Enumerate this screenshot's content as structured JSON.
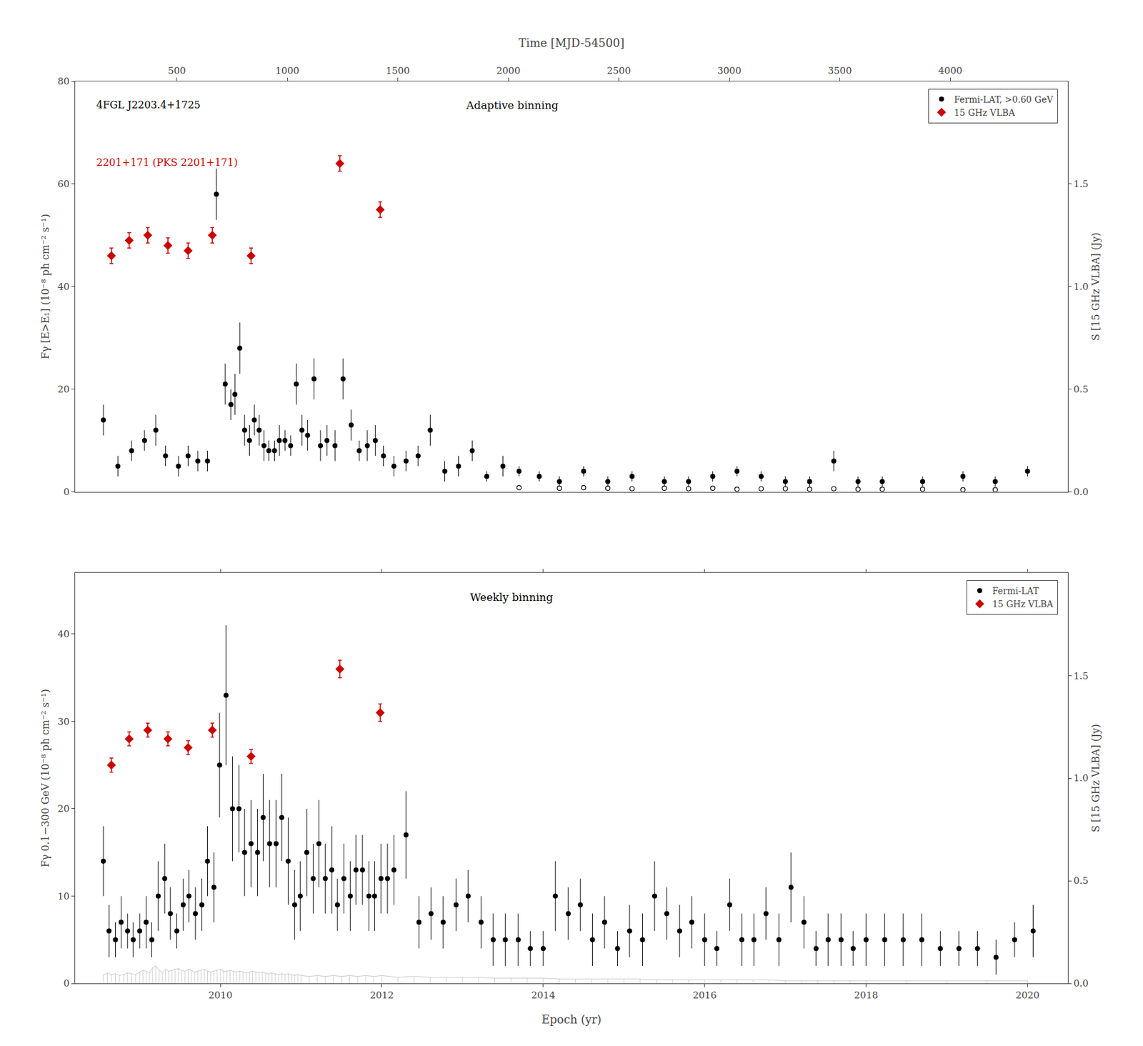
{
  "chart_data": [
    {
      "type": "scatter",
      "x2label": "Time [MJD-54500]",
      "ylabel": "Fγ [E>E₁] (10⁻⁸ ph cm⁻² s⁻¹)",
      "y2label": "S [15 GHz VLBA] (Jy)",
      "xlim": [
        2008.2,
        2020.5
      ],
      "x2ticks": [
        {
          "value": 2009.460643,
          "label": "500"
        },
        {
          "value": 2010.829569,
          "label": "1000"
        },
        {
          "value": 2012.198494,
          "label": "1500"
        },
        {
          "value": 2013.567419,
          "label": "2000"
        },
        {
          "value": 2014.936345,
          "label": "2500"
        },
        {
          "value": 2016.30527,
          "label": "3000"
        },
        {
          "value": 2017.674196,
          "label": "3500"
        },
        {
          "value": 2019.043121,
          "label": "4000"
        }
      ],
      "ylim": [
        0,
        80
      ],
      "yticks": [
        0,
        20,
        40,
        60,
        80
      ],
      "y2lim": [
        0,
        2.0
      ],
      "y2ticks": [
        {
          "value": 0,
          "label": "0.0"
        },
        0.5,
        {
          "value": 1.0,
          "label": "1.0"
        },
        1.5
      ],
      "grid": false,
      "legend": "upper right",
      "annotations": [
        {
          "text": "4FGL J2203.4+1725",
          "color": "#000000"
        },
        {
          "text": "2201+171 (PKS 2201+171)",
          "color": "#cc0000"
        },
        {
          "text": "Adaptive binning",
          "color": "#000000"
        }
      ],
      "series": [
        {
          "name": "Fermi-LAT, >0.60 GeV",
          "type": "scatter",
          "marker": "circle",
          "color": "#000000",
          "x": [
            2008.55,
            2008.73,
            2008.9,
            2009.06,
            2009.2,
            2009.32,
            2009.48,
            2009.6,
            2009.72,
            2009.84,
            2009.95,
            2010.06,
            2010.13,
            2010.18,
            2010.24,
            2010.3,
            2010.36,
            2010.42,
            2010.48,
            2010.54,
            2010.6,
            2010.67,
            2010.73,
            2010.8,
            2010.87,
            2010.94,
            2011.01,
            2011.08,
            2011.16,
            2011.24,
            2011.32,
            2011.42,
            2011.52,
            2011.62,
            2011.72,
            2011.82,
            2011.92,
            2012.02,
            2012.15,
            2012.3,
            2012.45,
            2012.6,
            2012.78,
            2012.95,
            2013.12,
            2013.3,
            2013.5,
            2013.7,
            2013.95,
            2014.2,
            2014.5,
            2014.8,
            2015.1,
            2015.5,
            2015.8,
            2016.1,
            2016.4,
            2016.7,
            2017.0,
            2017.3,
            2017.6,
            2017.9,
            2018.2,
            2018.7,
            2019.2,
            2019.6,
            2020.0
          ],
          "values": [
            14,
            5,
            8,
            10,
            12,
            7,
            5,
            7,
            6,
            6,
            58,
            21,
            17,
            19,
            28,
            12,
            10,
            14,
            12,
            9,
            8,
            8,
            10,
            10,
            9,
            21,
            12,
            11,
            22,
            9,
            10,
            9,
            22,
            13,
            8,
            9,
            10,
            7,
            5,
            6,
            7,
            12,
            4,
            5,
            8,
            3,
            5,
            4,
            3,
            2,
            4,
            2,
            3,
            2,
            2,
            3,
            4,
            3,
            2,
            2,
            6,
            2,
            2,
            2,
            3,
            2,
            4
          ],
          "yerr": [
            3,
            2,
            2,
            2,
            3,
            2,
            2,
            2,
            2,
            2,
            5,
            4,
            3,
            4,
            5,
            3,
            3,
            3,
            3,
            3,
            2,
            2,
            3,
            2,
            2,
            4,
            3,
            3,
            4,
            3,
            3,
            3,
            4,
            3,
            2,
            3,
            3,
            2,
            2,
            2,
            2,
            3,
            2,
            2,
            2,
            1,
            2,
            1,
            1,
            1,
            1,
            1,
            1,
            1,
            1,
            1,
            1,
            1,
            1,
            1,
            2,
            1,
            1,
            1,
            1,
            1,
            1
          ]
        },
        {
          "type": "scatter",
          "marker": "circle-open",
          "color": "#000000",
          "x": [
            2013.7,
            2014.2,
            2014.5,
            2014.8,
            2015.1,
            2015.5,
            2015.8,
            2016.1,
            2016.4,
            2016.7,
            2017.0,
            2017.3,
            2017.6,
            2017.9,
            2018.2,
            2018.7,
            2019.2,
            2019.6
          ],
          "values": [
            0.8,
            0.7,
            0.8,
            0.7,
            0.6,
            0.7,
            0.6,
            0.7,
            0.5,
            0.6,
            0.6,
            0.5,
            0.6,
            0.5,
            0.5,
            0.5,
            0.4,
            0.4
          ]
        },
        {
          "name": "15 GHz VLBA",
          "type": "scatter",
          "marker": "diamond",
          "color": "#cc0000",
          "x": [
            2008.65,
            2008.87,
            2009.1,
            2009.35,
            2009.6,
            2009.9,
            2010.38,
            2011.48,
            2011.98
          ],
          "values": [
            46,
            49,
            50,
            48,
            47,
            50,
            46,
            64,
            55
          ],
          "yerr": [
            1.5,
            1.5,
            1.5,
            1.5,
            1.5,
            1.5,
            1.5,
            1.5,
            1.5
          ]
        }
      ]
    },
    {
      "type": "scatter",
      "xlabel": "Epoch (yr)",
      "ylabel": "Fγ 0.1−300 GeV (10⁻⁸ ph cm⁻² s⁻¹)",
      "y2label": "S [15 GHz VLBA] (Jy)",
      "xlim": [
        2008.2,
        2020.5
      ],
      "xticks": [
        2010,
        2012,
        2014,
        2016,
        2018,
        2020
      ],
      "ylim": [
        0,
        47
      ],
      "yticks": [
        0,
        10,
        20,
        30,
        40
      ],
      "y2lim": [
        0,
        2.0
      ],
      "y2ticks": [
        {
          "value": 0,
          "label": "0.0"
        },
        0.5,
        {
          "value": 1.0,
          "label": "1.0"
        },
        1.5
      ],
      "grid": false,
      "legend": "upper right",
      "annotations": [
        {
          "text": "Weekly binning",
          "color": "#000000"
        }
      ],
      "series": [
        {
          "type": "stem",
          "color": "#aaaaaa",
          "x": [
            2008.55,
            2008.6,
            2008.65,
            2008.7,
            2008.75,
            2008.8,
            2008.85,
            2008.9,
            2008.95,
            2009.0,
            2009.04,
            2009.08,
            2009.12,
            2009.16,
            2009.2,
            2009.24,
            2009.28,
            2009.32,
            2009.36,
            2009.4,
            2009.44,
            2009.48,
            2009.52,
            2009.56,
            2009.6,
            2009.64,
            2009.68,
            2009.72,
            2009.76,
            2009.8,
            2009.84,
            2009.88,
            2009.92,
            2009.96,
            2010.0,
            2010.04,
            2010.08,
            2010.12,
            2010.16,
            2010.2,
            2010.24,
            2010.28,
            2010.32,
            2010.36,
            2010.4,
            2010.44,
            2010.48,
            2010.52,
            2010.56,
            2010.6,
            2010.64,
            2010.68,
            2010.72,
            2010.76,
            2010.8,
            2010.84,
            2010.88,
            2010.92,
            2010.96,
            2011.0,
            2011.1,
            2011.2,
            2011.3,
            2011.4,
            2011.5,
            2011.6,
            2011.7,
            2011.8,
            2011.9,
            2012.0,
            2012.2,
            2012.4,
            2012.6,
            2012.8,
            2013.0,
            2013.2,
            2013.4,
            2013.6,
            2013.8,
            2014.0,
            2014.2,
            2014.4,
            2014.6,
            2014.8,
            2015.0,
            2015.2,
            2015.4,
            2015.6,
            2015.8,
            2016.0,
            2016.2,
            2016.4,
            2016.6,
            2016.8,
            2017.0,
            2017.2,
            2017.4,
            2017.6,
            2017.8,
            2018.0,
            2018.5,
            2019.0,
            2019.5,
            2020.0
          ],
          "values": [
            1.0,
            1.2,
            1.0,
            1.1,
            0.9,
            1.0,
            1.2,
            1.1,
            1.0,
            1.3,
            1.5,
            1.4,
            1.2,
            1.8,
            2.0,
            1.5,
            1.3,
            1.6,
            1.4,
            1.5,
            1.6,
            1.7,
            1.5,
            1.4,
            1.6,
            1.5,
            1.3,
            1.4,
            1.5,
            1.6,
            1.4,
            1.3,
            1.4,
            1.5,
            1.6,
            1.4,
            1.4,
            1.5,
            1.4,
            1.3,
            1.4,
            1.3,
            1.2,
            1.3,
            1.4,
            1.3,
            1.2,
            1.3,
            1.2,
            1.1,
            1.2,
            1.1,
            1.0,
            1.1,
            1.0,
            1.1,
            1.0,
            0.9,
            1.0,
            0.9,
            0.8,
            0.9,
            0.8,
            0.9,
            0.8,
            0.9,
            0.8,
            0.9,
            0.8,
            0.9,
            0.7,
            0.8,
            0.7,
            0.7,
            0.7,
            0.7,
            0.6,
            0.6,
            0.6,
            0.6,
            0.5,
            0.5,
            0.5,
            0.5,
            0.5,
            0.5,
            0.4,
            0.4,
            0.4,
            0.4,
            0.4,
            0.4,
            0.4,
            0.4,
            0.3,
            0.3,
            0.3,
            0.3,
            0.3,
            0.3,
            0.3,
            0.3,
            0.3,
            0.3
          ]
        },
        {
          "name": "Fermi-LAT",
          "type": "scatter",
          "marker": "circle",
          "color": "#000000",
          "x": [
            2008.55,
            2008.62,
            2008.7,
            2008.77,
            2008.85,
            2008.92,
            2009.0,
            2009.08,
            2009.15,
            2009.23,
            2009.31,
            2009.38,
            2009.46,
            2009.54,
            2009.61,
            2009.69,
            2009.77,
            2009.84,
            2009.92,
            2009.99,
            2010.07,
            2010.15,
            2010.23,
            2010.3,
            2010.38,
            2010.46,
            2010.53,
            2010.61,
            2010.69,
            2010.76,
            2010.84,
            2010.92,
            2010.99,
            2011.07,
            2011.15,
            2011.22,
            2011.3,
            2011.38,
            2011.45,
            2011.53,
            2011.61,
            2011.68,
            2011.76,
            2011.84,
            2011.91,
            2011.99,
            2012.07,
            2012.15,
            2012.3,
            2012.46,
            2012.61,
            2012.76,
            2012.92,
            2013.07,
            2013.23,
            2013.38,
            2013.53,
            2013.69,
            2013.84,
            2014.0,
            2014.15,
            2014.31,
            2014.46,
            2014.61,
            2014.76,
            2014.92,
            2015.07,
            2015.23,
            2015.38,
            2015.53,
            2015.69,
            2015.84,
            2016.0,
            2016.15,
            2016.31,
            2016.46,
            2016.61,
            2016.76,
            2016.92,
            2017.07,
            2017.23,
            2017.38,
            2017.53,
            2017.69,
            2017.84,
            2018.0,
            2018.23,
            2018.46,
            2018.69,
            2018.92,
            2019.15,
            2019.38,
            2019.61,
            2019.84,
            2020.07
          ],
          "values": [
            14,
            6,
            5,
            7,
            6,
            5,
            6,
            7,
            5,
            10,
            12,
            8,
            6,
            9,
            10,
            8,
            9,
            14,
            11,
            25,
            33,
            20,
            20,
            15,
            16,
            15,
            19,
            16,
            16,
            19,
            14,
            9,
            10,
            15,
            12,
            16,
            12,
            13,
            9,
            12,
            10,
            13,
            13,
            10,
            10,
            12,
            12,
            13,
            17,
            7,
            8,
            7,
            9,
            10,
            7,
            5,
            5,
            5,
            4,
            4,
            10,
            8,
            9,
            5,
            7,
            4,
            6,
            5,
            10,
            8,
            6,
            7,
            5,
            4,
            9,
            5,
            5,
            8,
            5,
            11,
            7,
            4,
            5,
            5,
            4,
            5,
            5,
            5,
            5,
            4,
            4,
            4,
            3,
            5,
            6
          ],
          "yerr": [
            4,
            3,
            2,
            3,
            2,
            2,
            2,
            3,
            2,
            4,
            4,
            3,
            2,
            3,
            3,
            3,
            3,
            4,
            4,
            6,
            8,
            6,
            5,
            5,
            5,
            5,
            5,
            5,
            5,
            5,
            5,
            4,
            4,
            5,
            4,
            5,
            4,
            5,
            3,
            4,
            4,
            4,
            4,
            4,
            4,
            4,
            4,
            4,
            5,
            3,
            3,
            3,
            3,
            3,
            3,
            3,
            3,
            3,
            2,
            2,
            4,
            3,
            3,
            3,
            3,
            2,
            3,
            3,
            4,
            3,
            3,
            3,
            3,
            2,
            3,
            3,
            3,
            3,
            3,
            4,
            3,
            2,
            3,
            3,
            2,
            3,
            3,
            3,
            3,
            2,
            2,
            2,
            2,
            2,
            3
          ]
        },
        {
          "name": "15 GHz VLBA",
          "type": "scatter",
          "marker": "diamond",
          "color": "#cc0000",
          "x": [
            2008.65,
            2008.87,
            2009.1,
            2009.35,
            2009.6,
            2009.9,
            2010.38,
            2011.48,
            2011.98
          ],
          "values": [
            25,
            28,
            29,
            28,
            27,
            29,
            26,
            36,
            31
          ],
          "yerr": [
            0.8,
            0.8,
            0.8,
            0.8,
            0.8,
            0.8,
            0.8,
            1.0,
            1.0
          ]
        }
      ]
    }
  ]
}
